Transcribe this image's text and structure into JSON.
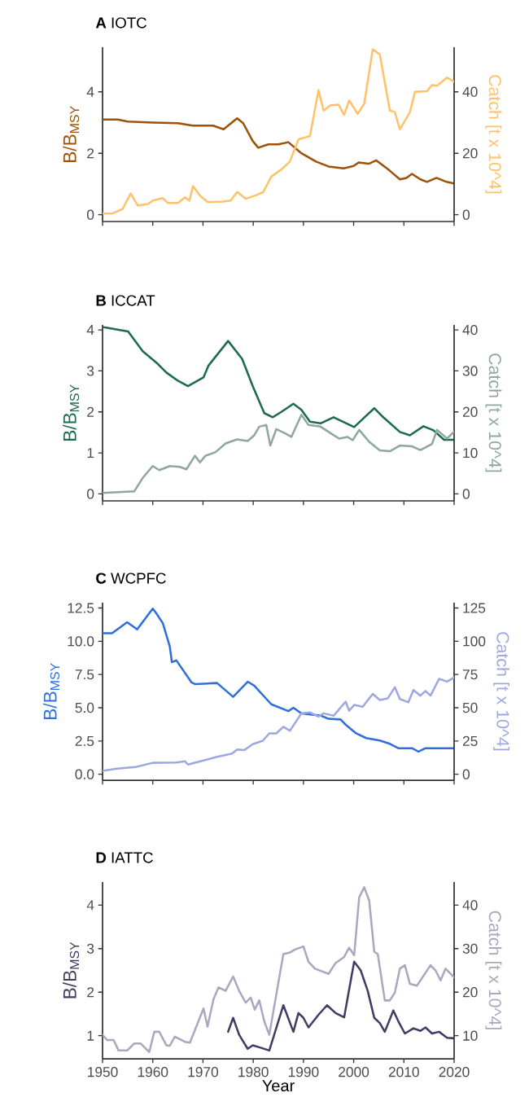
{
  "chart_data": [
    {
      "type": "line",
      "title": "**A**  IOTC",
      "ylabel": "B/B$_{MSY}$",
      "y2label": "Catch [t x 10^4]",
      "xlim": [
        1950,
        2020
      ],
      "xticks": [
        1950,
        1960,
        1970,
        1980,
        1990,
        2000,
        2010,
        2020
      ],
      "ylim": [
        -0.22,
        5.45
      ],
      "yticks": [
        0,
        2,
        4
      ],
      "y2lim": [
        -2.2,
        54.5
      ],
      "y2ticks": [
        0,
        20,
        40
      ],
      "tick_labels": "y",
      "series": [
        {
          "color": "#9c5208",
          "x": [
            1950,
            1953,
            1955,
            1960,
            1965,
            1968,
            1972,
            1974.1,
            1976.8,
            1978,
            1979.9,
            1981,
            1983,
            1985,
            1987,
            1989.6,
            1992.5,
            1995,
            1998,
            2000,
            2001,
            2003,
            2004.5,
            2007,
            2009.2,
            2010.5,
            2011.6,
            2013.3,
            2014.6,
            2016.5,
            2018.5,
            2020
          ],
          "values": [
            3.1,
            3.1,
            3.03,
            3.0,
            2.98,
            2.9,
            2.9,
            2.78,
            3.14,
            2.98,
            2.4,
            2.18,
            2.29,
            2.29,
            2.36,
            2.0,
            1.73,
            1.57,
            1.51,
            1.59,
            1.7,
            1.66,
            1.77,
            1.46,
            1.15,
            1.2,
            1.33,
            1.15,
            1.07,
            1.2,
            1.07,
            1.02
          ]
        },
        {
          "color": "#ffc16a",
          "axis": "y2",
          "x": [
            1950,
            1952,
            1954,
            1955.6,
            1957,
            1959,
            1960,
            1962,
            1963,
            1965,
            1966.4,
            1967.3,
            1968,
            1969.5,
            1971,
            1974,
            1975.5,
            1976.8,
            1978.5,
            1980.5,
            1982,
            1983.6,
            1985.5,
            1987.3,
            1989,
            1990,
            1991.3,
            1993,
            1994,
            1995.4,
            1997,
            1998.1,
            1999.1,
            2000.8,
            2002.1,
            2003.8,
            2005.2,
            2007.2,
            2008.2,
            2009.2,
            2010.6,
            2011.2,
            2012.2,
            2014.6,
            2015.6,
            2016.6,
            2018.6,
            2020
          ],
          "values": [
            0.4,
            0.4,
            1.9,
            6.9,
            3.0,
            3.5,
            4.6,
            5.4,
            3.8,
            3.8,
            5.7,
            4.6,
            9.3,
            6.0,
            4.1,
            4.3,
            4.6,
            7.4,
            5.2,
            6.3,
            7.4,
            12.4,
            14.6,
            17.3,
            24.5,
            25.0,
            25.6,
            40.5,
            33.9,
            35.6,
            35.8,
            32.5,
            37.2,
            32.8,
            36.1,
            53.8,
            52.2,
            33.9,
            33.4,
            27.8,
            31.7,
            33.4,
            40.0,
            40.2,
            42.2,
            42.0,
            44.6,
            43.3
          ]
        }
      ]
    },
    {
      "type": "line",
      "title": "**B**  ICCAT",
      "ylabel": "B/B$_{MSY}$",
      "y2label": "Catch [t x 10^4]",
      "xlim": [
        1950,
        2020
      ],
      "xticks": [
        1950,
        1960,
        1970,
        1980,
        1990,
        2000,
        2010,
        2020
      ],
      "ylim": [
        -0.17,
        4.12
      ],
      "yticks": [
        0,
        1,
        2,
        3,
        4
      ],
      "y2lim": [
        -1.7,
        41.2
      ],
      "y2ticks": [
        0,
        10,
        20,
        30,
        40
      ],
      "tick_labels": "y",
      "series": [
        {
          "color": "#1d6a50",
          "x": [
            1950,
            1955.1,
            1958,
            1961,
            1962.7,
            1965,
            1967,
            1970.1,
            1971.1,
            1975,
            1977.8,
            1979.9,
            1982.2,
            1983.9,
            1985.6,
            1988,
            1989.6,
            1991.3,
            1993.4,
            1996,
            2000.1,
            2004.1,
            2005.8,
            2009.2,
            2011.2,
            2013.9,
            2015.9,
            2018,
            2020
          ],
          "values": [
            4.07,
            3.96,
            3.48,
            3.17,
            2.96,
            2.76,
            2.63,
            2.84,
            3.13,
            3.73,
            3.29,
            2.63,
            1.97,
            1.87,
            2.0,
            2.2,
            2.05,
            1.76,
            1.72,
            1.87,
            1.63,
            2.09,
            1.88,
            1.51,
            1.43,
            1.65,
            1.55,
            1.32,
            1.32
          ]
        },
        {
          "color": "#8fa89c",
          "axis": "y2",
          "x": [
            1950,
            1955.6,
            1956.3,
            1958,
            1960,
            1961.3,
            1963.4,
            1965.4,
            1966.7,
            1968.4,
            1969.4,
            1970.5,
            1972.5,
            1974.5,
            1976.8,
            1978.9,
            1980.2,
            1981.2,
            1982.6,
            1983.4,
            1984.6,
            1986.3,
            1987.6,
            1989.6,
            1991,
            1993.4,
            1995.4,
            1997.1,
            1998.8,
            1999.8,
            2001.1,
            2003.1,
            2005.2,
            2007.2,
            2009.2,
            2011.6,
            2013.3,
            2015.6,
            2016.6,
            2018.6,
            2020
          ],
          "values": [
            0.25,
            0.6,
            0.6,
            3.9,
            6.8,
            5.8,
            6.8,
            6.6,
            6.0,
            9.3,
            7.7,
            9.3,
            10.2,
            12.3,
            13.3,
            12.9,
            14.3,
            16.4,
            16.8,
            11.8,
            15.8,
            14.8,
            13.9,
            19.3,
            16.8,
            16.4,
            14.8,
            13.5,
            13.9,
            13.1,
            15.6,
            12.7,
            10.6,
            10.4,
            11.8,
            11.6,
            10.7,
            12.2,
            15.6,
            13.5,
            15.2
          ]
        }
      ]
    },
    {
      "type": "line",
      "title": "**C**  WCPFC",
      "ylabel": "B/B$_{MSY}$",
      "y2label": "Catch [t x 10^4]",
      "xlim": [
        1950,
        2020
      ],
      "xticks": [
        1950,
        1960,
        1970,
        1980,
        1990,
        2000,
        2010,
        2020
      ],
      "ylim": [
        -0.45,
        12.9
      ],
      "yticks": [
        {
          "value": 0,
          "label": "0.0"
        },
        2.5,
        {
          "value": 5,
          "label": "5.0"
        },
        7.5,
        {
          "value": 10,
          "label": "10.0"
        },
        12.5
      ],
      "y2lim": [
        -4.5,
        129
      ],
      "y2ticks": [
        0,
        25,
        50,
        75,
        100,
        125
      ],
      "tick_labels": "y",
      "series": [
        {
          "color": "#2f6fdc",
          "x": [
            1950,
            1951.9,
            1954.9,
            1956.9,
            1960,
            1960.7,
            1962,
            1963.4,
            1963.8,
            1964.7,
            1967.7,
            1968.4,
            1972.8,
            1976,
            1978.9,
            1980.2,
            1983.6,
            1987,
            1988,
            1989.6,
            1991.3,
            1993.4,
            1995,
            1997.4,
            1998.4,
            2000.4,
            2002.5,
            2005.2,
            2007.2,
            2008.9,
            2011.6,
            2012.9,
            2014.3,
            2020
          ],
          "values": [
            10.6,
            10.6,
            11.43,
            10.9,
            12.45,
            12.1,
            11.36,
            9.58,
            8.43,
            8.56,
            6.91,
            6.78,
            6.86,
            5.82,
            6.96,
            6.66,
            5.26,
            4.75,
            5.0,
            4.57,
            4.5,
            4.42,
            4.17,
            4.12,
            3.73,
            3.1,
            2.72,
            2.54,
            2.29,
            1.96,
            1.96,
            1.7,
            1.96,
            1.96
          ]
        },
        {
          "color": "#9ea8e0",
          "axis": "y2",
          "x": [
            1950,
            1952.9,
            1956.6,
            1960,
            1964.7,
            1966.4,
            1967,
            1970.1,
            1972.8,
            1975.8,
            1976.8,
            1978.2,
            1979.9,
            1981.9,
            1983.2,
            1984.6,
            1986,
            1987.3,
            1989.6,
            1991.3,
            1993,
            1994,
            1996,
            1998.4,
            1999.1,
            2000.1,
            2001.8,
            2003.8,
            2005.2,
            2006.8,
            2008.2,
            2009.2,
            2010.9,
            2011.9,
            2013.3,
            2014.3,
            2015.3,
            2017,
            2018.6,
            2020
          ],
          "values": [
            2.5,
            4.3,
            5.5,
            8.6,
            8.8,
            9.8,
            7.3,
            10.3,
            13.1,
            15.6,
            18.6,
            18.1,
            22.6,
            25.2,
            30.7,
            30.7,
            35.7,
            32.7,
            45.8,
            46.5,
            43.3,
            45.8,
            44.0,
            54.6,
            47.8,
            52.1,
            50.8,
            60.4,
            55.8,
            57.1,
            65.4,
            56.6,
            54.1,
            63.4,
            59.1,
            62.6,
            59.1,
            71.7,
            69.7,
            72.7
          ]
        }
      ]
    },
    {
      "type": "line",
      "title": "**D**  IATTC",
      "xlabel": "Year",
      "ylabel": "B/B$_{MSY}$",
      "y2label": "Catch [t x 10^4]",
      "xlim": [
        1950,
        2020
      ],
      "xticks": [
        1950,
        1960,
        1970,
        1980,
        1990,
        2000,
        2010,
        2020
      ],
      "ylim": [
        0.47,
        4.53
      ],
      "yticks": [
        1,
        2,
        3,
        4
      ],
      "y2lim": [
        4.7,
        45.3
      ],
      "y2ticks": [
        10,
        20,
        30,
        40
      ],
      "series": [
        {
          "color": "#3f3d63",
          "x": [
            1975,
            1976,
            1977.2,
            1978.9,
            1979.9,
            1981.6,
            1983.2,
            1986,
            1988,
            1989,
            1990,
            1991,
            1993,
            1994.7,
            1996.4,
            1998.1,
            2000.1,
            2001.4,
            2002.8,
            2004.1,
            2005.2,
            2006.2,
            2007.9,
            2008.9,
            2010.2,
            2011.9,
            2013.3,
            2014.3,
            2015.6,
            2017,
            2018.6,
            2020
          ],
          "values": [
            1.09,
            1.41,
            1.02,
            0.7,
            0.78,
            0.72,
            0.66,
            1.7,
            1.09,
            1.52,
            1.41,
            1.19,
            1.48,
            1.7,
            1.52,
            1.42,
            2.7,
            2.5,
            2.03,
            1.41,
            1.29,
            1.09,
            1.58,
            1.33,
            1.05,
            1.17,
            1.11,
            1.19,
            1.05,
            1.09,
            0.95,
            0.94
          ]
        },
        {
          "color": "#a8a8bf",
          "axis": "y2",
          "x": [
            1950,
            1950.9,
            1952.2,
            1953.2,
            1954.9,
            1956.3,
            1957.6,
            1959.3,
            1960.3,
            1961.3,
            1962.7,
            1963.4,
            1964.4,
            1966.4,
            1967.4,
            1970.1,
            1970.9,
            1972.1,
            1973.1,
            1974.5,
            1976,
            1977.2,
            1978.5,
            1979.5,
            1980.3,
            1981.2,
            1982.2,
            1983.2,
            1986,
            1987.3,
            1988.3,
            1990,
            1991,
            1992.3,
            1995,
            1996.4,
            1998.1,
            1999.1,
            2000.1,
            2001.1,
            2002.1,
            2003.1,
            2004.1,
            2004.8,
            2006.2,
            2007.2,
            2008.2,
            2009.2,
            2010.2,
            2011.2,
            2012.6,
            2015.3,
            2016.3,
            2017.3,
            2018.3,
            2020
          ],
          "values": [
            10.2,
            9.0,
            9.0,
            6.6,
            6.6,
            8.2,
            8.2,
            6.25,
            10.9,
            10.9,
            7.8,
            7.7,
            9.8,
            8.6,
            8.4,
            16.25,
            12.1,
            18.4,
            21.1,
            20.3,
            23.6,
            20.3,
            17.6,
            18.75,
            16.0,
            18.1,
            13.3,
            10.2,
            28.75,
            29.1,
            29.8,
            30.5,
            27.0,
            25.4,
            24.2,
            26.7,
            28.1,
            30.2,
            28.5,
            41.8,
            44.1,
            41.0,
            29.3,
            28.75,
            18.1,
            18.1,
            19.9,
            25.4,
            26.2,
            21.9,
            21.5,
            26.2,
            25.0,
            22.7,
            25.4,
            23.4
          ]
        }
      ]
    }
  ]
}
